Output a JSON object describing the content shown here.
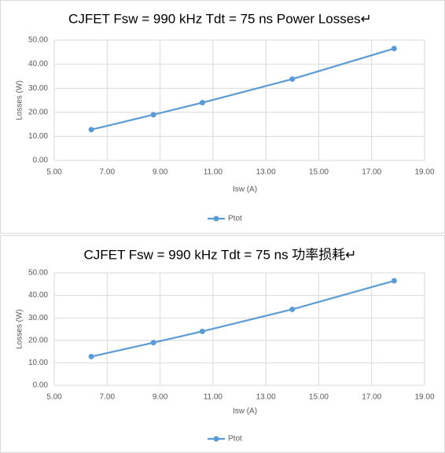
{
  "chart_data": [
    {
      "type": "line",
      "title": "CJFET Fsw = 990 kHz Tdt = 75 ns Power Losses↵",
      "x_label": "Isw (A)",
      "y_label": "Losses (W)",
      "x": [
        6.4,
        8.75,
        10.6,
        14.0,
        17.85
      ],
      "series": [
        {
          "name": "Ptot",
          "color": "#5b9bd5",
          "values": [
            12.8,
            19.0,
            24.0,
            33.8,
            46.5
          ]
        }
      ],
      "xlim": [
        5,
        19
      ],
      "xticks": [
        {
          "value": 5,
          "label": "5.00"
        },
        {
          "value": 7,
          "label": "7.00"
        },
        {
          "value": 9,
          "label": "9.00"
        },
        {
          "value": 11,
          "label": "11.00"
        },
        {
          "value": 13,
          "label": "13.00"
        },
        {
          "value": 15,
          "label": "15.00"
        },
        {
          "value": 17,
          "label": "17.00"
        },
        {
          "value": 19,
          "label": "19.00"
        }
      ],
      "ylim": [
        0,
        50
      ],
      "yticks": [
        {
          "value": 0,
          "label": "0.00"
        },
        {
          "value": 10,
          "label": "10.00"
        },
        {
          "value": 20,
          "label": "20.00"
        },
        {
          "value": 30,
          "label": "30.00"
        },
        {
          "value": 40,
          "label": "40.00"
        },
        {
          "value": 50,
          "label": "50.00"
        }
      ],
      "grid": true,
      "legend": "bottom"
    },
    {
      "type": "line",
      "title": "CJFET Fsw = 990 kHz Tdt = 75 ns 功率损耗↵",
      "x_label": "Isw (A)",
      "y_label": "Losses (W)",
      "x": [
        6.4,
        8.75,
        10.6,
        14.0,
        17.85
      ],
      "series": [
        {
          "name": "Ptot",
          "color": "#5b9bd5",
          "values": [
            12.8,
            19.0,
            24.0,
            33.8,
            46.5
          ]
        }
      ],
      "xlim": [
        5,
        19
      ],
      "xticks": [
        {
          "value": 5,
          "label": "5.00"
        },
        {
          "value": 7,
          "label": "7.00"
        },
        {
          "value": 9,
          "label": "9.00"
        },
        {
          "value": 11,
          "label": "11.00"
        },
        {
          "value": 13,
          "label": "13.00"
        },
        {
          "value": 15,
          "label": "15.00"
        },
        {
          "value": 17,
          "label": "17.00"
        },
        {
          "value": 19,
          "label": "19.00"
        }
      ],
      "ylim": [
        0,
        50
      ],
      "yticks": [
        {
          "value": 0,
          "label": "0.00"
        },
        {
          "value": 10,
          "label": "10.00"
        },
        {
          "value": 20,
          "label": "20.00"
        },
        {
          "value": 30,
          "label": "30.00"
        },
        {
          "value": 40,
          "label": "40.00"
        },
        {
          "value": 50,
          "label": "50.00"
        }
      ],
      "grid": true,
      "legend": "bottom"
    }
  ]
}
